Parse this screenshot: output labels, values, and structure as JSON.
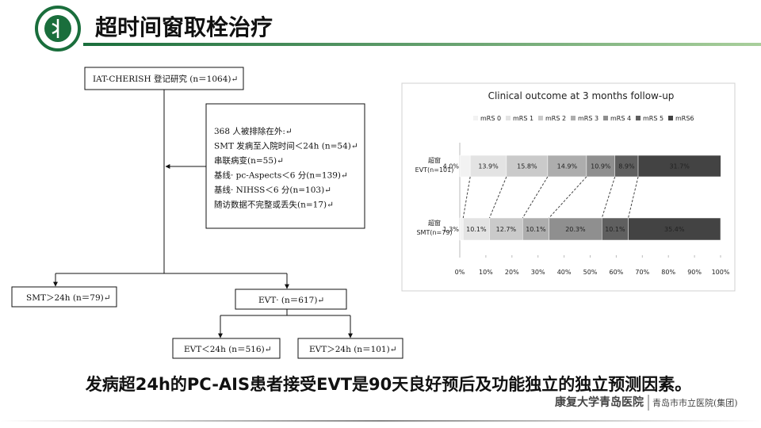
{
  "header": {
    "title": "超时间窗取栓治疗"
  },
  "flowchart": {
    "registry": "IAT-CHERISH 登记研究 (n＝1064)↵",
    "excluded": [
      "368 人被排除在外:↵",
      "SMT 发病至入院时间＜24h (n=54)↵",
      "串联病变(n=55)↵",
      "基线· pc-Aspects＜6 分(n=139)↵",
      "基线· NIHSS＜6 分(n=103)↵",
      "随访数据不完整或丢失(n=17)↵"
    ],
    "smt": "SMT＞24h (n＝79)↵",
    "evt": "EVT· (n＝617)↵",
    "evt_early": "EVT＜24h (n＝516)↵",
    "evt_late": "EVT＞24h (n＝101)↵"
  },
  "chart_data": {
    "type": "stacked-bar-horizontal",
    "title": "Clinical outcome at 3 months follow-up",
    "categories": [
      [
        "超窗",
        "EVT(n=101)"
      ],
      [
        "超窗",
        "SMT(n=79)"
      ]
    ],
    "series": [
      {
        "name": "mRS 0",
        "color": "#f2f2f2",
        "values": [
          4.0,
          1.3
        ],
        "value_labels": [
          "4.0%",
          "1.3%"
        ]
      },
      {
        "name": "mRS 1",
        "color": "#e3e3e3",
        "values": [
          13.9,
          10.1
        ],
        "value_labels": [
          "13.9%",
          "10.1%"
        ]
      },
      {
        "name": "mRS 2",
        "color": "#cacaca",
        "values": [
          15.8,
          12.7
        ],
        "value_labels": [
          "15.8%",
          "12.7%"
        ]
      },
      {
        "name": "mRS 3",
        "color": "#adadad",
        "values": [
          14.9,
          10.1
        ],
        "value_labels": [
          "14.9%",
          "10.1%"
        ]
      },
      {
        "name": "mRS 4",
        "color": "#8f8f8f",
        "values": [
          10.9,
          20.3
        ],
        "value_labels": [
          "10.9%",
          "20.3%"
        ]
      },
      {
        "name": "mRS 5",
        "color": "#5f5f5f",
        "values": [
          8.9,
          10.1
        ],
        "value_labels": [
          "8.9%",
          "10.1%"
        ]
      },
      {
        "name": "mRS6",
        "color": "#434343",
        "values": [
          31.7,
          35.4
        ],
        "value_labels": [
          "31.7%",
          "35.4%"
        ]
      }
    ],
    "xlim": [
      0,
      100
    ],
    "xticks": [
      {
        "value": 0,
        "label": "0%"
      },
      {
        "value": 10,
        "label": "10%"
      },
      {
        "value": 20,
        "label": "20%"
      },
      {
        "value": 30,
        "label": "30%"
      },
      {
        "value": 40,
        "label": "40%"
      },
      {
        "value": 50,
        "label": "50%"
      },
      {
        "value": 60,
        "label": "60%"
      },
      {
        "value": 70,
        "label": "70%"
      },
      {
        "value": 80,
        "label": "80%"
      },
      {
        "value": 90,
        "label": "90%"
      },
      {
        "value": 100,
        "label": "100%"
      }
    ],
    "legend": "top"
  },
  "conclusion": "发病超24h的PC-AIS患者接受EVT是90天良好预后及功能独立的独立预测因素。",
  "footer": {
    "left": "康复大学青岛医院",
    "right": "青岛市市立医院(集团)"
  }
}
